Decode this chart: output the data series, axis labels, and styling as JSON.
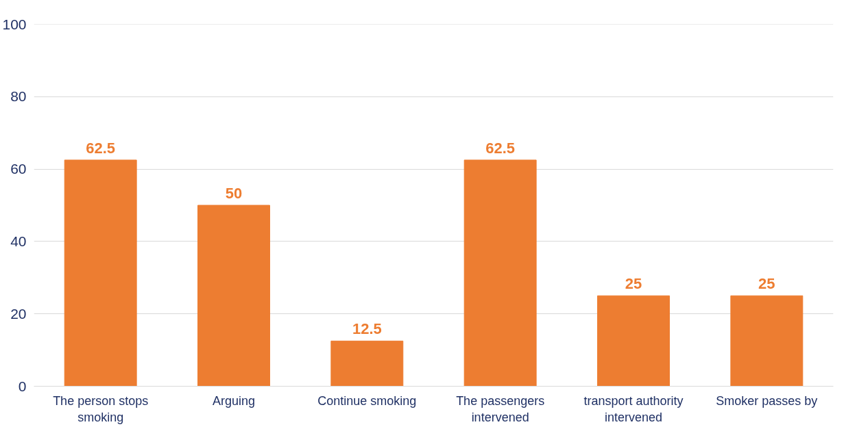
{
  "chart_data": {
    "type": "bar",
    "categories": [
      "The person stops smoking",
      "Arguing",
      "Continue smoking",
      "The passengers intervened",
      "transport authority intervened",
      "Smoker passes by"
    ],
    "values": [
      62.5,
      50,
      12.5,
      62.5,
      25,
      25
    ],
    "color": "#ed7d31",
    "ylim": [
      0,
      100
    ],
    "yticks": [
      0,
      20,
      40,
      60,
      80,
      100
    ],
    "grid": "y",
    "data_labels": true
  }
}
